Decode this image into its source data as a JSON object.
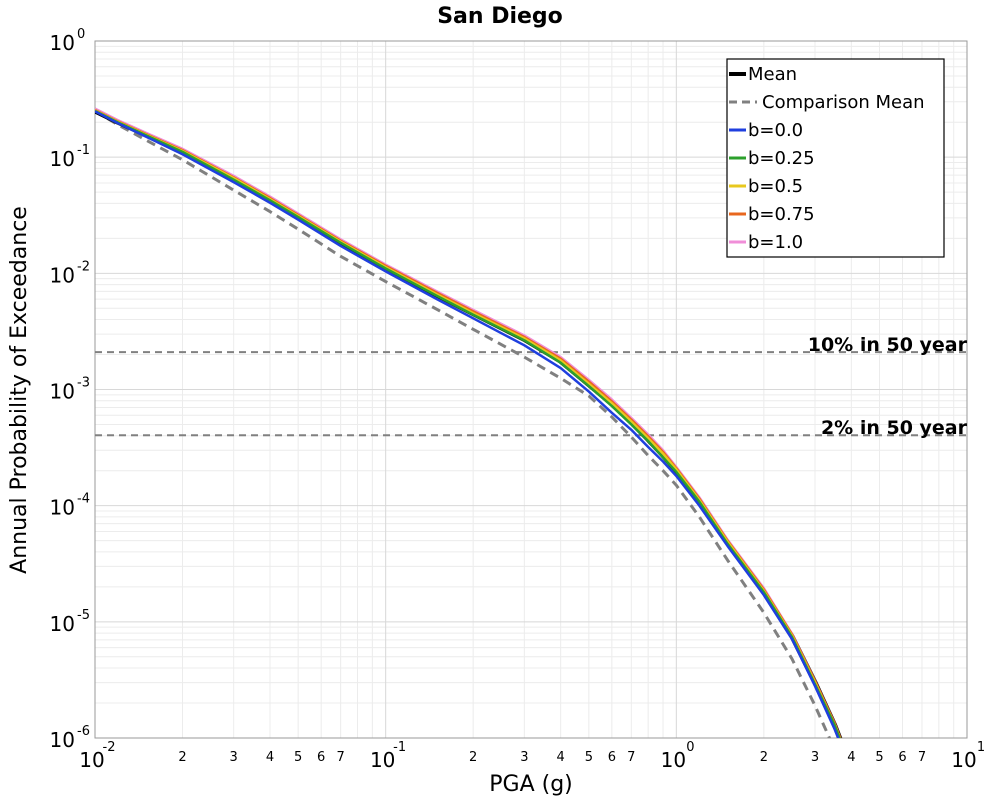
{
  "chart_data": {
    "type": "line",
    "title": "San Diego",
    "xlabel": "PGA (g)",
    "ylabel": "Annual Probability of Exceedance",
    "x_scale": "log",
    "y_scale": "log",
    "xlim": [
      0.01,
      10
    ],
    "ylim": [
      1e-06,
      1
    ],
    "grid": true,
    "legend_position": "top-right",
    "x_major_ticks": [
      {
        "value": 0.01,
        "base": "10",
        "exp": "-2"
      },
      {
        "value": 0.1,
        "base": "10",
        "exp": "-1"
      },
      {
        "value": 1,
        "base": "10",
        "exp": "0"
      },
      {
        "value": 10,
        "base": "10",
        "exp": "1"
      }
    ],
    "y_major_ticks": [
      {
        "value": 1,
        "base": "10",
        "exp": "0"
      },
      {
        "value": 0.1,
        "base": "10",
        "exp": "-1"
      },
      {
        "value": 0.01,
        "base": "10",
        "exp": "-2"
      },
      {
        "value": 0.001,
        "base": "10",
        "exp": "-3"
      },
      {
        "value": 0.0001,
        "base": "10",
        "exp": "-4"
      },
      {
        "value": 1e-05,
        "base": "10",
        "exp": "-5"
      },
      {
        "value": 1e-06,
        "base": "10",
        "exp": "-6"
      }
    ],
    "x_minor_tick_labels": [
      "2",
      "3",
      "4",
      "5",
      "6",
      "7"
    ],
    "x": [
      0.01,
      0.012,
      0.015,
      0.02,
      0.03,
      0.04,
      0.05,
      0.07,
      0.1,
      0.15,
      0.2,
      0.3,
      0.4,
      0.5,
      0.6,
      0.7,
      0.8,
      0.9,
      1.0,
      1.2,
      1.5,
      2.0,
      2.5,
      3.0,
      3.5,
      4.0
    ],
    "series": [
      {
        "name": "Mean",
        "color": "#000000",
        "dash": "solid",
        "width": 5,
        "values": [
          0.25,
          0.2,
          0.155,
          0.112,
          0.065,
          0.043,
          0.031,
          0.0185,
          0.0112,
          0.0065,
          0.0045,
          0.0027,
          0.00175,
          0.0011,
          0.00075,
          0.00052,
          0.00037,
          0.00027,
          0.0002,
          0.00011,
          4.8e-05,
          1.8e-05,
          7.5e-06,
          3e-06,
          1.3e-06,
          5.5e-07
        ]
      },
      {
        "name": "Comparison Mean",
        "color": "#808080",
        "dash": "dashed",
        "width": 3,
        "values": [
          0.25,
          0.19,
          0.14,
          0.095,
          0.052,
          0.034,
          0.024,
          0.014,
          0.0085,
          0.0049,
          0.0033,
          0.0019,
          0.00125,
          0.00088,
          0.00058,
          0.00039,
          0.00027,
          0.0002,
          0.00015,
          8e-05,
          3.4e-05,
          1.2e-05,
          4.8e-06,
          1.9e-06,
          8e-07,
          3.2e-07
        ]
      },
      {
        "name": "b=0.0",
        "color": "#1f3fdf",
        "dash": "solid",
        "width": 2.5,
        "values": [
          0.248,
          0.196,
          0.15,
          0.106,
          0.061,
          0.0405,
          0.029,
          0.0172,
          0.0104,
          0.006,
          0.0041,
          0.0024,
          0.00153,
          0.00096,
          0.00063,
          0.00045,
          0.00032,
          0.00024,
          0.00018,
          0.0001,
          4.5e-05,
          1.7e-05,
          7.1e-06,
          2.8e-06,
          1.2e-06,
          5.2e-07
        ]
      },
      {
        "name": "b=0.25",
        "color": "#2ca02c",
        "dash": "solid",
        "width": 2.5,
        "values": [
          0.25,
          0.199,
          0.154,
          0.111,
          0.064,
          0.0425,
          0.0305,
          0.0183,
          0.011,
          0.0064,
          0.0044,
          0.00265,
          0.0017,
          0.00107,
          0.00072,
          0.0005,
          0.00036,
          0.00026,
          0.000195,
          0.000108,
          4.7e-05,
          1.8e-05,
          7.4e-06,
          2.9e-06,
          1.3e-06,
          5.4e-07
        ]
      },
      {
        "name": "b=0.5",
        "color": "#e8c81e",
        "dash": "solid",
        "width": 2.5,
        "values": [
          0.252,
          0.201,
          0.156,
          0.113,
          0.066,
          0.0435,
          0.0312,
          0.0187,
          0.0113,
          0.0066,
          0.00455,
          0.00275,
          0.00178,
          0.00112,
          0.00076,
          0.00053,
          0.00038,
          0.00028,
          0.000205,
          0.000112,
          4.9e-05,
          1.85e-05,
          7.6e-06,
          3e-06,
          1.3e-06,
          5.5e-07
        ]
      },
      {
        "name": "b=0.75",
        "color": "#e8671e",
        "dash": "solid",
        "width": 2.5,
        "values": [
          0.255,
          0.203,
          0.158,
          0.115,
          0.067,
          0.0445,
          0.0318,
          0.0191,
          0.0116,
          0.0068,
          0.0047,
          0.00283,
          0.00184,
          0.00117,
          0.00079,
          0.00055,
          0.000395,
          0.00029,
          0.00021,
          0.000115,
          5e-05,
          1.9e-05,
          7.8e-06,
          3.1e-06,
          1.35e-06,
          5.6e-07
        ]
      },
      {
        "name": "b=1.0",
        "color": "#f08ed8",
        "dash": "solid",
        "width": 2.5,
        "values": [
          0.262,
          0.208,
          0.162,
          0.118,
          0.069,
          0.0458,
          0.0327,
          0.0196,
          0.0119,
          0.007,
          0.00485,
          0.00292,
          0.0019,
          0.00121,
          0.00082,
          0.00057,
          0.00041,
          0.0003,
          0.000215,
          0.000118,
          5.1e-05,
          1.95e-05,
          7.9e-06,
          3.1e-06,
          1.35e-06,
          5.6e-07
        ]
      }
    ],
    "reference_lines": [
      {
        "label": "10% in 50 year",
        "y": 0.0021,
        "color": "#808080"
      },
      {
        "label": "2% in 50 year",
        "y": 0.000404,
        "color": "#808080"
      }
    ]
  }
}
